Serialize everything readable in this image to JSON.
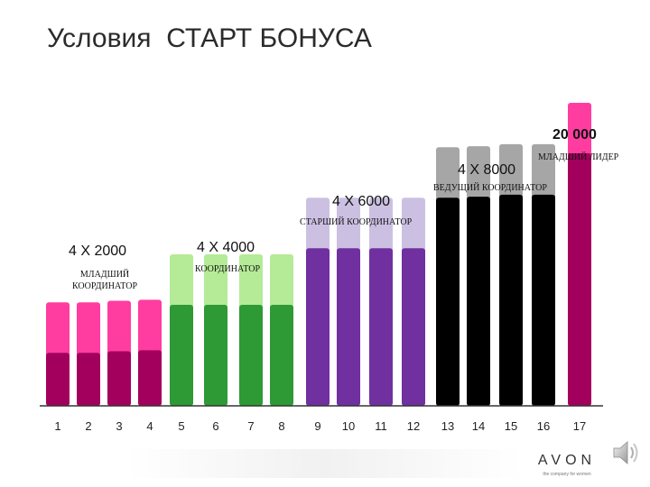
{
  "slide": {
    "title": "Условия  СТАРТ БОНУСА"
  },
  "groups": [
    {
      "amount": "4 X 2000",
      "rank": "МЛАДШИЙ\nКООРДИНАТОР"
    },
    {
      "amount": "4 X 4000",
      "rank": "КООРДИНАТОР"
    },
    {
      "amount": "4 X 6000",
      "rank": "СТАРШИЙ КООРДИНАТОР"
    },
    {
      "amount": "4 X 8000",
      "rank": "ВЕДУЩИЙ КООРДИНАТОР"
    },
    {
      "amount": "20 000",
      "rank": "МЛАДШИЙ ЛИДЕР"
    }
  ],
  "chart_data": {
    "type": "bar",
    "categories": [
      "1",
      "2",
      "3",
      "4",
      "5",
      "6",
      "7",
      "8",
      "9",
      "10",
      "11",
      "12",
      "13",
      "14",
      "15",
      "16",
      "17"
    ],
    "series": [
      {
        "values": [
          1,
          1,
          1,
          1,
          2,
          2,
          2,
          2,
          3,
          3,
          3,
          3,
          4,
          4,
          4,
          4,
          5
        ]
      },
      {
        "values": [
          2,
          2,
          2,
          2,
          3,
          3,
          3,
          3,
          4,
          4,
          4,
          4,
          5,
          5,
          5,
          5,
          6
        ]
      }
    ],
    "group_colors": [
      {
        "bottom": "#a3005e",
        "top": "#ff3da0"
      },
      {
        "bottom": "#2e9a35",
        "top": "#b5eb96"
      },
      {
        "bottom": "#7030a0",
        "top": "#ccc0e2"
      },
      {
        "bottom": "#000000",
        "top": "#a6a6a6"
      },
      {
        "bottom": "#a3005e",
        "top": "#ff3da0"
      }
    ]
  },
  "footer": {
    "brand": "AVON",
    "tagline": "the company for women"
  },
  "icons": {
    "sound": "speaker-icon"
  }
}
